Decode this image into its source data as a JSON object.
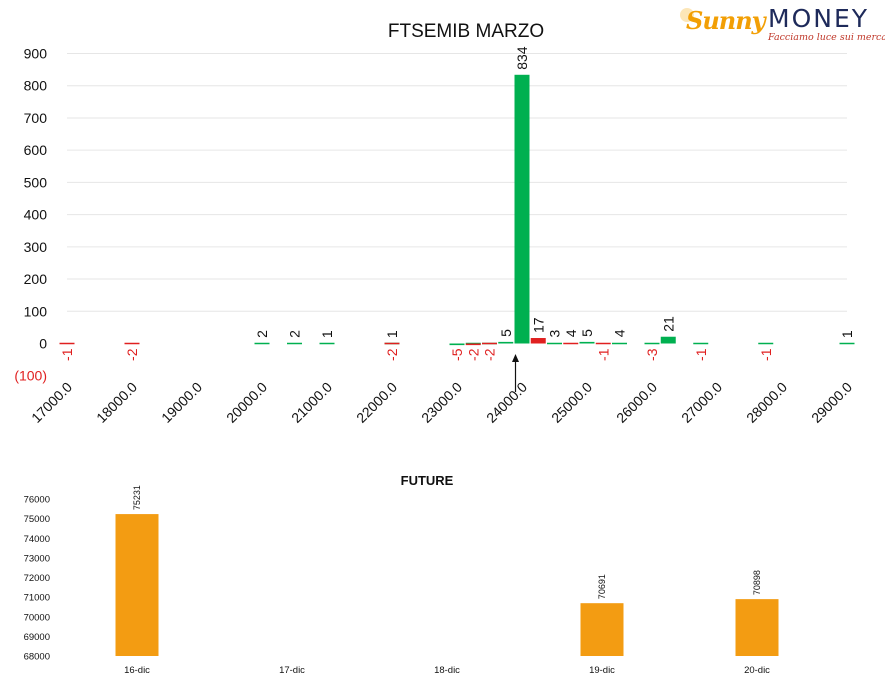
{
  "logo": {
    "brand_first": "Sunny",
    "brand_second": "MONEY",
    "tagline": "Facciamo luce sui mercati"
  },
  "colors": {
    "green": "#00b050",
    "red": "#e02020",
    "orange": "#f39c12",
    "grid": "#e6e6e6",
    "text": "#000000"
  },
  "chart_data": [
    {
      "type": "bar",
      "title": "FTSEMIB MARZO",
      "xlabel": "",
      "ylabel": "",
      "ylim": [
        -100,
        900
      ],
      "yticks": [
        "(100)",
        "0",
        "100",
        "200",
        "300",
        "400",
        "500",
        "600",
        "700",
        "800",
        "900"
      ],
      "xticks": [
        "17000.0",
        "18000.0",
        "19000.0",
        "20000.0",
        "21000.0",
        "22000.0",
        "23000.0",
        "24000.0",
        "25000.0",
        "26000.0",
        "27000.0",
        "28000.0",
        "29000.0"
      ],
      "xlim": [
        17000,
        29000
      ],
      "grid": true,
      "marker_strike": 23900,
      "series": [
        {
          "color": "#00b050",
          "points": [
            [
              20000,
              2
            ],
            [
              20500,
              2
            ],
            [
              21000,
              1
            ],
            [
              22000,
              1
            ],
            [
              23000,
              -5
            ],
            [
              23250,
              -2
            ],
            [
              23500,
              -2
            ],
            [
              23750,
              5
            ],
            [
              24000,
              834
            ],
            [
              24500,
              3
            ],
            [
              25000,
              5
            ],
            [
              25500,
              4
            ],
            [
              26000,
              -3
            ],
            [
              26250,
              21
            ],
            [
              26750,
              -1
            ],
            [
              27750,
              -1
            ],
            [
              29000,
              1
            ]
          ]
        },
        {
          "color": "#e02020",
          "points": [
            [
              17000,
              -1
            ],
            [
              18000,
              -2
            ],
            [
              22000,
              -2
            ],
            [
              23250,
              -5
            ],
            [
              23500,
              -2
            ],
            [
              24250,
              17
            ],
            [
              24750,
              4
            ],
            [
              25250,
              -1
            ]
          ]
        }
      ],
      "labels": [
        {
          "x": 17000,
          "text": "-1",
          "color": "red",
          "pos": "below"
        },
        {
          "x": 18000,
          "text": "-2",
          "color": "red",
          "pos": "below"
        },
        {
          "x": 20000,
          "text": "2",
          "color": "black",
          "pos": "above"
        },
        {
          "x": 20500,
          "text": "2",
          "color": "black",
          "pos": "above"
        },
        {
          "x": 21000,
          "text": "1",
          "color": "black",
          "pos": "above"
        },
        {
          "x": 22000,
          "text": "1",
          "color": "black",
          "pos": "above"
        },
        {
          "x": 22000,
          "text": "-2",
          "color": "red",
          "pos": "below"
        },
        {
          "x": 23000,
          "text": "-5",
          "color": "red",
          "pos": "below"
        },
        {
          "x": 23250,
          "text": "-2",
          "color": "red",
          "pos": "below"
        },
        {
          "x": 23500,
          "text": "-2",
          "color": "red",
          "pos": "below"
        },
        {
          "x": 23750,
          "text": "5",
          "color": "black",
          "pos": "above"
        },
        {
          "x": 24000,
          "text": "834",
          "color": "black",
          "pos": "above"
        },
        {
          "x": 24250,
          "text": "17",
          "color": "black",
          "pos": "above"
        },
        {
          "x": 24500,
          "text": "3",
          "color": "black",
          "pos": "above"
        },
        {
          "x": 24750,
          "text": "4",
          "color": "black",
          "pos": "above"
        },
        {
          "x": 25000,
          "text": "5",
          "color": "black",
          "pos": "above"
        },
        {
          "x": 25250,
          "text": "-1",
          "color": "red",
          "pos": "below"
        },
        {
          "x": 25500,
          "text": "4",
          "color": "black",
          "pos": "above"
        },
        {
          "x": 26000,
          "text": "-3",
          "color": "red",
          "pos": "below"
        },
        {
          "x": 26250,
          "text": "21",
          "color": "black",
          "pos": "above"
        },
        {
          "x": 26750,
          "text": "-1",
          "color": "red",
          "pos": "below"
        },
        {
          "x": 27750,
          "text": "-1",
          "color": "red",
          "pos": "below"
        },
        {
          "x": 29000,
          "text": "1",
          "color": "black",
          "pos": "above"
        }
      ]
    },
    {
      "type": "bar",
      "title": "FUTURE",
      "xlabel": "",
      "ylabel": "",
      "ylim": [
        68000,
        76000
      ],
      "yticks": [
        "68000",
        "69000",
        "70000",
        "71000",
        "72000",
        "73000",
        "74000",
        "75000",
        "76000"
      ],
      "categories": [
        "16-dic",
        "17-dic",
        "18-dic",
        "19-dic",
        "20-dic"
      ],
      "values": [
        75231,
        null,
        null,
        70691,
        70898
      ],
      "value_labels": [
        "75231",
        "",
        "",
        "70691",
        "70898"
      ],
      "color": "#f39c12",
      "grid": false
    }
  ]
}
